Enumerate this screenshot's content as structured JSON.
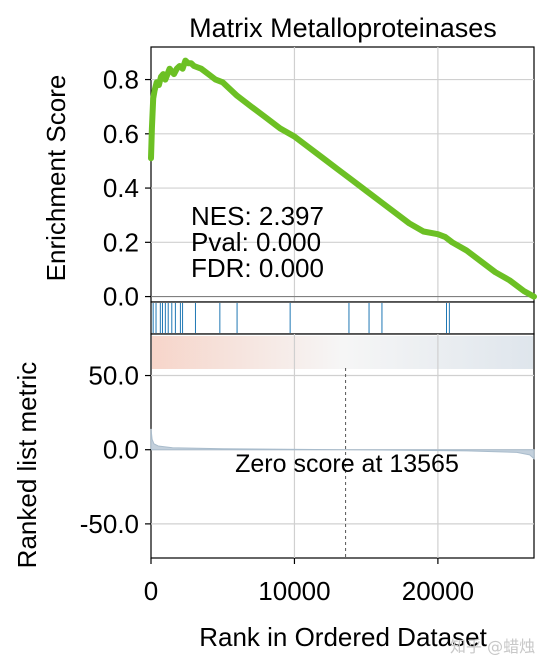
{
  "chart_data": {
    "type": "line",
    "title": "Matrix Metalloproteinases",
    "es_panel": {
      "ylabel": "Enrichment Score",
      "ylim": [
        -0.02,
        0.92
      ],
      "yticks": [
        0.0,
        0.2,
        0.4,
        0.6,
        0.8
      ],
      "ytick_labels": [
        "0.0",
        "0.2",
        "0.4",
        "0.6",
        "0.8"
      ],
      "line_color": "#6cc024",
      "series": {
        "x": [
          0,
          60,
          150,
          250,
          400,
          550,
          700,
          850,
          1000,
          1150,
          1300,
          1450,
          1600,
          1800,
          2000,
          2200,
          2400,
          2600,
          2800,
          3000,
          3500,
          4000,
          4500,
          5000,
          6000,
          7000,
          8000,
          9000,
          10000,
          11000,
          12000,
          13000,
          14000,
          15000,
          16000,
          17000,
          18000,
          19000,
          20000,
          20500,
          21000,
          22000,
          23000,
          24000,
          25000,
          26000,
          26700
        ],
        "y": [
          0.51,
          0.62,
          0.73,
          0.76,
          0.79,
          0.78,
          0.81,
          0.82,
          0.8,
          0.82,
          0.84,
          0.83,
          0.82,
          0.84,
          0.85,
          0.84,
          0.87,
          0.86,
          0.86,
          0.85,
          0.84,
          0.82,
          0.8,
          0.79,
          0.74,
          0.7,
          0.66,
          0.62,
          0.59,
          0.55,
          0.51,
          0.47,
          0.43,
          0.39,
          0.35,
          0.31,
          0.27,
          0.24,
          0.23,
          0.22,
          0.2,
          0.17,
          0.13,
          0.09,
          0.06,
          0.02,
          0.0
        ]
      },
      "annotations": [
        "NES: 2.397",
        "Pval: 0.000",
        "FDR: 0.000"
      ]
    },
    "hits": [
      150,
      350,
      650,
      800,
      1000,
      1200,
      1450,
      1700,
      2050,
      2200,
      3100,
      4800,
      6000,
      9700,
      13800,
      15200,
      16100,
      20600,
      20800
    ],
    "metric_panel": {
      "ylabel": "Ranked list metric",
      "xlabel": "Rank in Ordered Dataset",
      "xlim": [
        0,
        26700
      ],
      "xticks": [
        0,
        10000,
        20000
      ],
      "xtick_labels": [
        "0",
        "10000",
        "20000"
      ],
      "ylim": [
        -73,
        78
      ],
      "yticks": [
        50,
        0,
        -50
      ],
      "ytick_labels": [
        "50.0",
        "0.0",
        "-50.0"
      ],
      "zero_cross": 13565,
      "zero_label": "Zero score at 13565"
    },
    "grid": true
  },
  "watermark": "知乎 @蜡烛"
}
